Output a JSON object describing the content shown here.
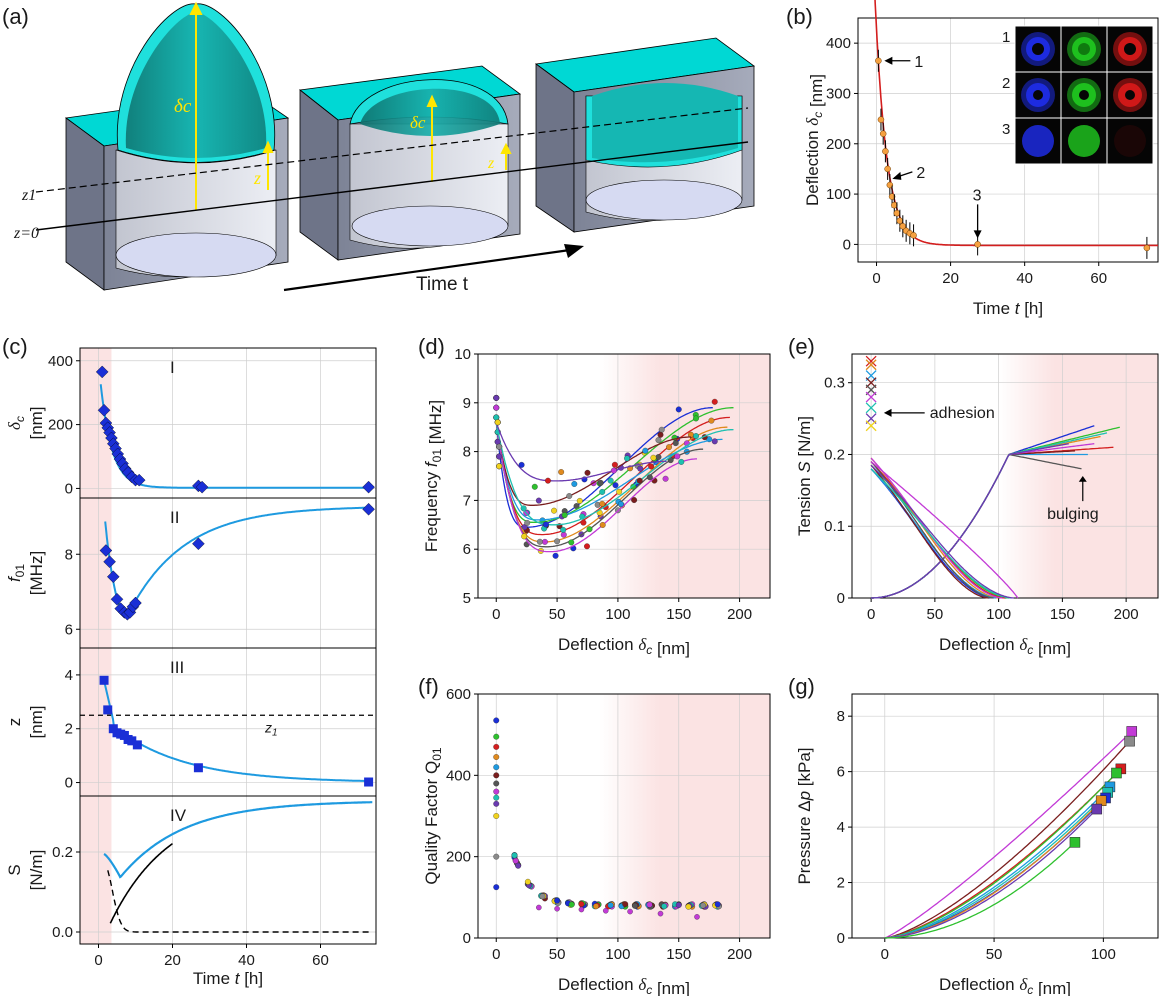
{
  "panel_labels": [
    "(a)",
    "(b)",
    "(c)",
    "(d)",
    "(e)",
    "(f)",
    "(g)"
  ],
  "panel_a": {
    "delta_label": "δc",
    "z_label": "z",
    "z1_label": "z1",
    "z0_label": "z=0",
    "time_label": "Time t"
  },
  "colors": {
    "membrane": "#1fe0dc",
    "membrane_dark": "#0f8f8a",
    "block": "#8d93a6",
    "fit_red": "#d41e1e",
    "fit_blue": "#1e9ae0",
    "marker_blue": "#1a2fd6",
    "shade": "#fbe3e3",
    "yellow": "#ffe600"
  },
  "chart_data": [
    {
      "id": "b",
      "type": "scatter",
      "xlabel": "Time t [h]",
      "ylabel": "Deflection δc [nm]",
      "xlim": [
        -5,
        76
      ],
      "ylim": [
        -35,
        450
      ],
      "xticks": [
        0,
        20,
        40,
        60
      ],
      "yticks": [
        0,
        100,
        200,
        300,
        400
      ],
      "points": [
        [
          0.5,
          365
        ],
        [
          1.2,
          248
        ],
        [
          1.8,
          220
        ],
        [
          2.4,
          185
        ],
        [
          3,
          150
        ],
        [
          3.6,
          118
        ],
        [
          4.2,
          95
        ],
        [
          4.8,
          78
        ],
        [
          5.5,
          62
        ],
        [
          6.3,
          47
        ],
        [
          7.1,
          36
        ],
        [
          8,
          27
        ],
        [
          9,
          22
        ],
        [
          10,
          18
        ],
        [
          27.3,
          0
        ],
        [
          73,
          -7
        ]
      ],
      "fit": "exponential decay",
      "arrows": [
        {
          "text": "1",
          "x": 0.5,
          "y": 365
        },
        {
          "text": "2",
          "x": 3.2,
          "y": 152
        },
        {
          "text": "3",
          "x": 27.3,
          "y": 0
        }
      ],
      "inset_rows": [
        "1",
        "2",
        "3"
      ]
    },
    {
      "id": "c",
      "type": "line",
      "xlabel": "Time t [h]",
      "xlim": [
        -5,
        75
      ],
      "xticks": [
        0,
        20,
        40,
        60
      ],
      "shade_x": [
        -5,
        3.5
      ],
      "subplots": [
        {
          "roman": "I",
          "ylabel": [
            "δc",
            "[nm]"
          ],
          "ylim": [
            -30,
            440
          ],
          "yticks": [
            0,
            200,
            400
          ],
          "points": [
            [
              1,
              365
            ],
            [
              1.5,
              245
            ],
            [
              2,
              205
            ],
            [
              2.5,
              190
            ],
            [
              3,
              175
            ],
            [
              3.5,
              158
            ],
            [
              4,
              140
            ],
            [
              4.6,
              125
            ],
            [
              5.2,
              108
            ],
            [
              5.8,
              92
            ],
            [
              6.5,
              78
            ],
            [
              7.2,
              62
            ],
            [
              8,
              50
            ],
            [
              9,
              36
            ],
            [
              10,
              26
            ],
            [
              11,
              26
            ],
            [
              27,
              8
            ],
            [
              28,
              4
            ],
            [
              73,
              4
            ]
          ]
        },
        {
          "roman": "II",
          "ylabel": [
            "f01",
            "[MHz]"
          ],
          "ylim": [
            5.5,
            9.5
          ],
          "yticks": [
            6,
            8
          ],
          "points": [
            [
              2,
              8.1
            ],
            [
              3,
              7.8
            ],
            [
              4,
              7.4
            ],
            [
              5,
              6.8
            ],
            [
              6,
              6.55
            ],
            [
              7,
              6.45
            ],
            [
              7.8,
              6.4
            ],
            [
              8.5,
              6.45
            ],
            [
              9.3,
              6.6
            ],
            [
              10,
              6.7
            ],
            [
              27,
              8.28
            ],
            [
              73,
              9.2
            ]
          ]
        },
        {
          "roman": "III",
          "ylabel": [
            "z",
            "[nm]"
          ],
          "ylim": [
            -0.5,
            5
          ],
          "yticks": [
            0,
            2,
            4
          ],
          "z1": 2.5,
          "z1_label": "z1",
          "points": [
            [
              1.5,
              3.8
            ],
            [
              2.5,
              2.7
            ],
            [
              4,
              2.0
            ],
            [
              5,
              1.85
            ],
            [
              6,
              1.8
            ],
            [
              7,
              1.75
            ],
            [
              8,
              1.6
            ],
            [
              9,
              1.55
            ],
            [
              10.5,
              1.4
            ],
            [
              27,
              0.55
            ],
            [
              73,
              0.02
            ]
          ]
        },
        {
          "roman": "IV",
          "ylabel": [
            "S",
            "[N/m]"
          ],
          "ylim": [
            -0.03,
            0.34
          ],
          "yticks": [
            0.0,
            0.2
          ]
        }
      ]
    },
    {
      "id": "d",
      "type": "scatter",
      "xlabel": "Deflection δc [nm]",
      "ylabel": "Frequency f01 [MHz]",
      "xlim": [
        -15,
        225
      ],
      "ylim": [
        5,
        10
      ],
      "xticks": [
        0,
        50,
        100,
        150,
        200
      ],
      "yticks": [
        5,
        6,
        7,
        8,
        9,
        10
      ],
      "shade_x": [
        85,
        225
      ]
    },
    {
      "id": "e",
      "type": "line",
      "xlabel": "Deflection δc [nm]",
      "ylabel": "Tension S [N/m]",
      "xlim": [
        -15,
        225
      ],
      "ylim": [
        0,
        0.34
      ],
      "xticks": [
        0,
        50,
        100,
        150,
        200
      ],
      "yticks": [
        0.0,
        0.1,
        0.2,
        0.3
      ],
      "shade_x": [
        100,
        225
      ],
      "annotations": [
        "adhesion",
        "bulging"
      ]
    },
    {
      "id": "f",
      "type": "scatter",
      "xlabel": "Deflection δc [nm]",
      "ylabel": "Quality Factor Q01",
      "xlim": [
        -15,
        225
      ],
      "ylim": [
        0,
        600
      ],
      "xticks": [
        0,
        50,
        100,
        150,
        200
      ],
      "yticks": [
        0,
        200,
        400,
        600
      ],
      "shade_x": [
        85,
        225
      ]
    },
    {
      "id": "g",
      "type": "line",
      "xlabel": "Deflection δc [nm]",
      "ylabel": "Pressure Δp [kPa]",
      "xlim": [
        -15,
        125
      ],
      "ylim": [
        0,
        8.8
      ],
      "xticks": [
        0,
        50,
        100
      ],
      "yticks": [
        0,
        2,
        4,
        6,
        8
      ],
      "endpoints": [
        [
          113,
          7.45
        ],
        [
          112,
          7.1
        ],
        [
          108,
          6.1
        ],
        [
          106,
          5.95
        ],
        [
          103,
          5.45
        ],
        [
          102,
          5.25
        ],
        [
          101,
          5.05
        ],
        [
          99,
          4.95
        ],
        [
          97,
          4.65
        ],
        [
          87,
          3.45
        ]
      ]
    }
  ]
}
